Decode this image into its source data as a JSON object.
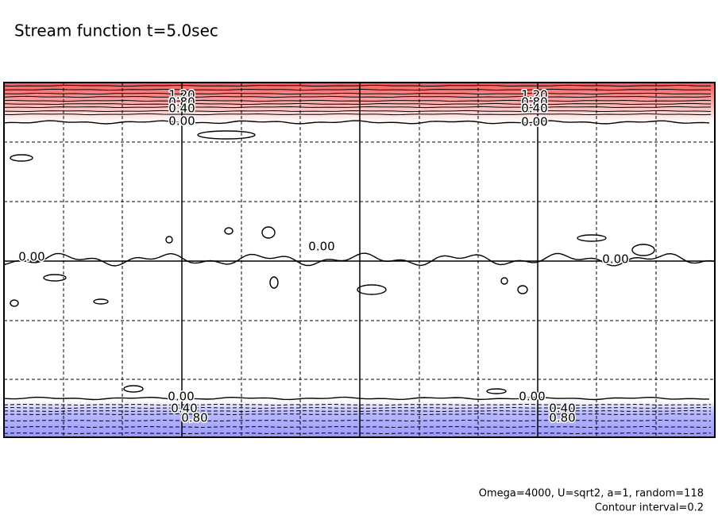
{
  "chart_data": {
    "type": "contour",
    "title": "Stream function t=5.0sec",
    "annotations": [
      "Omega=4000, U=sqrt2, a=1, random=118",
      "Contour interval=0.2"
    ],
    "contour_labels": [
      "1.20",
      "0.80",
      "0.40",
      "0.00",
      "1.20",
      "0.80",
      "0.40",
      "0.00",
      "0.00",
      "0.00",
      "0.00",
      "0.00",
      "0.40",
      "0.80",
      "0.00",
      "0.40",
      "0.80"
    ],
    "fill_colors": [
      "#ff5555",
      "#9999ff"
    ]
  }
}
